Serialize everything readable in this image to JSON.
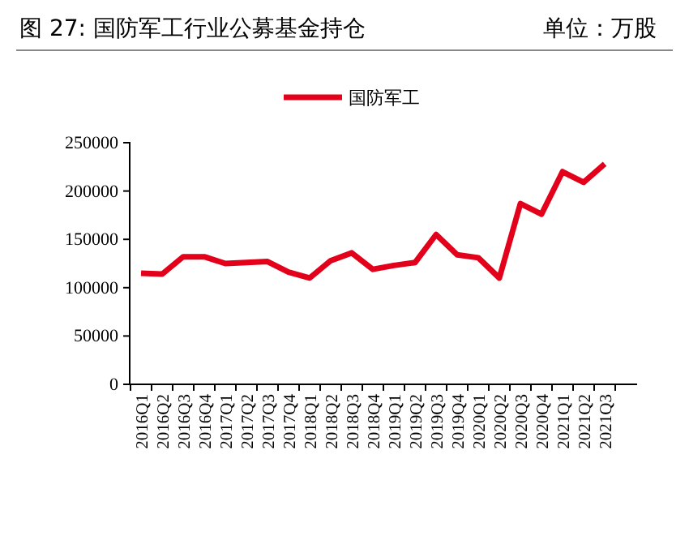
{
  "chart_data": {
    "type": "line",
    "title": "图 27:    国防军工行业公募基金持仓",
    "subtitle": "单位：万股",
    "categories": [
      "2016Q1",
      "2016Q2",
      "2016Q3",
      "2016Q4",
      "2017Q1",
      "2017Q2",
      "2017Q3",
      "2017Q4",
      "2018Q1",
      "2018Q2",
      "2018Q3",
      "2018Q4",
      "2019Q1",
      "2019Q2",
      "2019Q3",
      "2019Q4",
      "2020Q1",
      "2020Q2",
      "2020Q3",
      "2020Q4",
      "2021Q1",
      "2021Q2",
      "2021Q3"
    ],
    "series": [
      {
        "name": "国防军工",
        "color": "#e3001b",
        "values": [
          115000,
          114000,
          132000,
          132000,
          125000,
          126000,
          127000,
          116000,
          110000,
          128000,
          136000,
          119000,
          123000,
          126000,
          155000,
          134000,
          131000,
          110000,
          187000,
          176000,
          220000,
          209000,
          228000
        ]
      }
    ],
    "ylim": [
      0,
      250000
    ],
    "yticks": [
      0,
      50000,
      100000,
      150000,
      200000,
      250000
    ],
    "legend": "top",
    "grid": false,
    "marker": "none",
    "line_style": "solid"
  }
}
